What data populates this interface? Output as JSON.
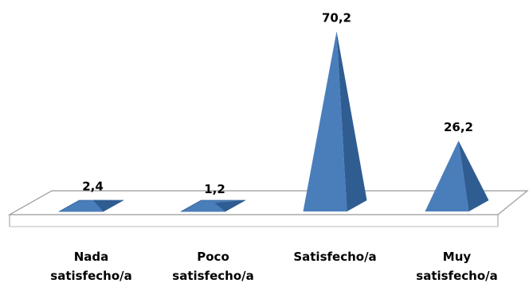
{
  "chart_data": {
    "type": "pyramid",
    "categories": [
      "Nada satisfecho/a",
      "Poco satisfecho/a",
      "Satisfecho/a",
      "Muy satisfecho/a"
    ],
    "values": [
      2.4,
      1.2,
      70.2,
      26.2
    ],
    "value_labels": [
      "2,4",
      "1,2",
      "70,2",
      "26,2"
    ],
    "color": "#4a7ebb"
  }
}
